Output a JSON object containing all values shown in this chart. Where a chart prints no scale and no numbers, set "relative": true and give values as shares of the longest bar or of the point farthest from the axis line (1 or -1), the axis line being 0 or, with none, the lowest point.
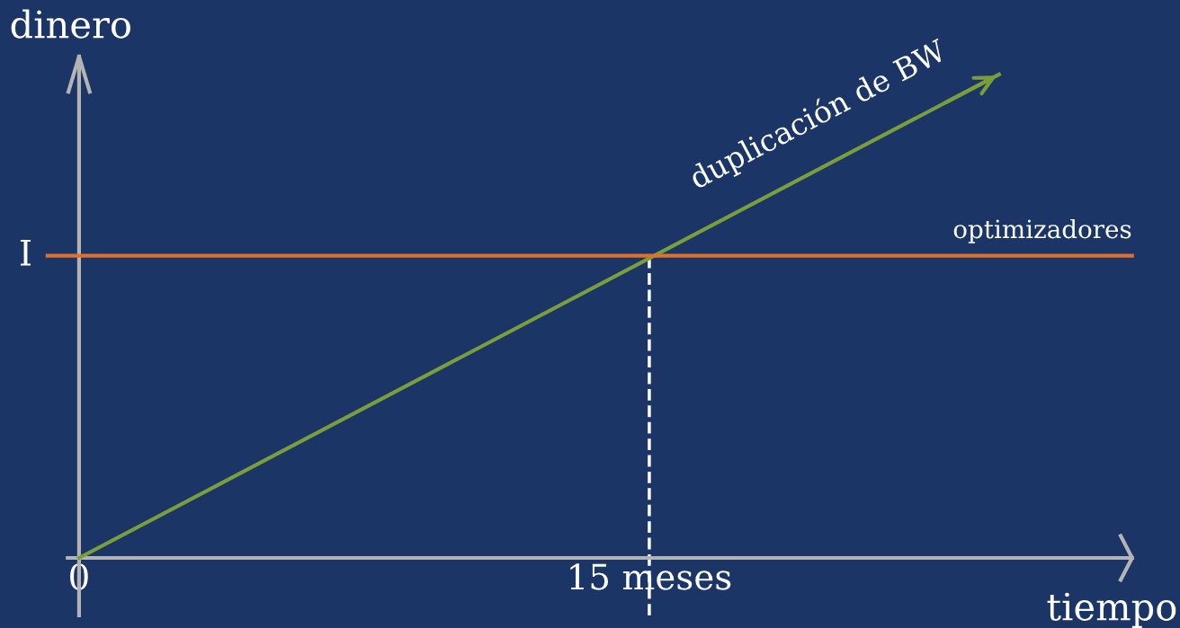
{
  "chart_data": {
    "type": "line",
    "xlabel": "tiempo",
    "ylabel": "dinero",
    "relative": true,
    "xlim": [
      -2.08,
      28.96
    ],
    "xticks": [
      {
        "value": 0,
        "label": "0"
      },
      {
        "value": 15,
        "label": "15 meses"
      }
    ],
    "series": [
      {
        "color": "#7a9e3c",
        "x": [
          0,
          24.2
        ],
        "values": [
          0,
          1
        ]
      },
      {
        "color": "#e0702a",
        "x": [
          -0.83,
          27.7
        ],
        "values": [
          0.625,
          0.625
        ]
      }
    ],
    "ref_lines": [
      {
        "axis": "x",
        "value": 15,
        "color": "#ffffff",
        "line_style": "dashed"
      }
    ],
    "annotations": [
      "duplicación de BW",
      "optimizadores",
      "I"
    ],
    "grid": false,
    "legend": false,
    "marker": "none",
    "line_style": "solid"
  }
}
